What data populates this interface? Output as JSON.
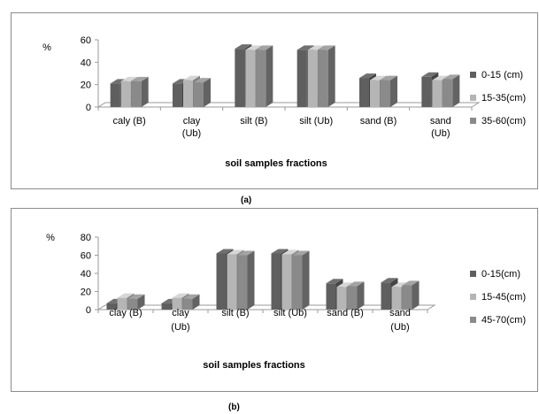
{
  "colors": {
    "dark": "#5f5f5f",
    "light": "#b5b5b5",
    "mid": "#8a8a8a",
    "axis": "#9a9a9a"
  },
  "chart_data": [
    {
      "type": "bar",
      "caption": "(a)",
      "ylabel": "%",
      "xlabel": "soil samples fractions",
      "ylim": [
        0,
        60
      ],
      "yticks": [
        "0",
        "20",
        "40",
        "60"
      ],
      "categories": [
        [
          "caly (B)"
        ],
        [
          "clay",
          "(Ub)"
        ],
        [
          "silt (B)"
        ],
        [
          "silt (Ub)"
        ],
        [
          "sand (B)"
        ],
        [
          "sand",
          "(Ub)"
        ]
      ],
      "series": [
        {
          "name": "0-15 (cm)",
          "values": [
            21,
            21,
            52,
            51,
            26,
            27
          ]
        },
        {
          "name": "15-35(cm)",
          "values": [
            23,
            24,
            51,
            51,
            24,
            24
          ]
        },
        {
          "name": "35-60(cm)",
          "values": [
            23,
            22,
            51,
            51,
            24,
            25
          ]
        }
      ],
      "legend": "right",
      "grid": false
    },
    {
      "type": "bar",
      "caption": "(b)",
      "ylabel": "%",
      "xlabel": "soil samples fractions",
      "ylim": [
        0,
        80
      ],
      "yticks": [
        "0",
        "20",
        "40",
        "60",
        "80"
      ],
      "categories": [
        [
          "clay (B)"
        ],
        [
          "clay",
          "(Ub)"
        ],
        [
          "silt (B)"
        ],
        [
          "silt (Ub)"
        ],
        [
          "sand (B)"
        ],
        [
          "sand",
          "(Ub)"
        ]
      ],
      "series": [
        {
          "name": "0-15(cm)",
          "values": [
            7,
            7,
            62,
            62,
            29,
            30
          ]
        },
        {
          "name": "15-45(cm)",
          "values": [
            13,
            13,
            61,
            61,
            25,
            25
          ]
        },
        {
          "name": "45-70(cm)",
          "values": [
            12,
            12,
            60,
            60,
            26,
            27
          ]
        }
      ],
      "legend": "right",
      "grid": false
    }
  ]
}
